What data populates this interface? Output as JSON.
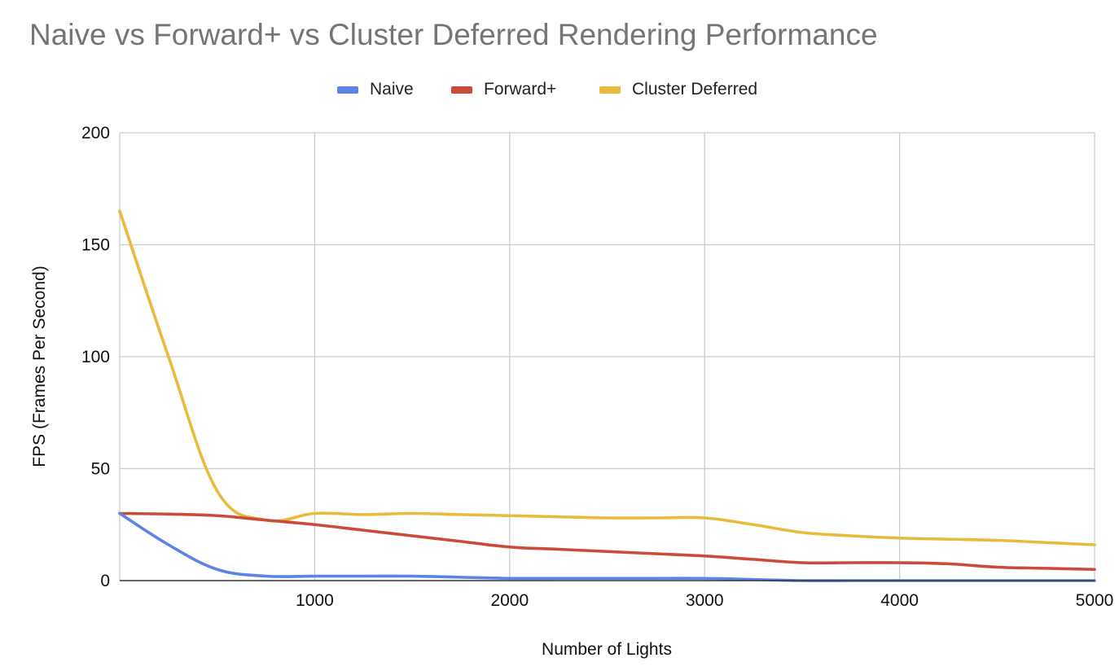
{
  "chart_data": {
    "type": "line",
    "title": "Naive vs Forward+ vs Cluster Deferred Rendering Performance",
    "xlabel": "Number of Lights",
    "ylabel": "FPS (Frames Per Second)",
    "xlim": [
      0,
      5000
    ],
    "ylim": [
      0,
      200
    ],
    "xticks": [
      1000,
      2000,
      3000,
      4000,
      5000
    ],
    "yticks": [
      0,
      50,
      100,
      150,
      200
    ],
    "grid": true,
    "legend_position": "top",
    "series": [
      {
        "name": "Naive",
        "color": "#5b84e6",
        "x": [
          0,
          250,
          500,
          750,
          1000,
          1250,
          1500,
          1750,
          2000,
          2250,
          2500,
          2750,
          3000,
          3250,
          3500,
          3750,
          4000,
          4250,
          4500,
          4750,
          5000
        ],
        "values": [
          30,
          16,
          5,
          2,
          2,
          2,
          2,
          1.5,
          1,
          1,
          1,
          1,
          1,
          0.5,
          0,
          0,
          0,
          0,
          0,
          0,
          0
        ]
      },
      {
        "name": "Forward+",
        "color": "#cc4a3a",
        "x": [
          0,
          250,
          500,
          750,
          1000,
          1250,
          1500,
          1750,
          2000,
          2250,
          2500,
          2750,
          3000,
          3250,
          3500,
          3750,
          4000,
          4250,
          4500,
          4750,
          5000
        ],
        "values": [
          30,
          29.7,
          29,
          27,
          25,
          22.5,
          20,
          17.5,
          15,
          14,
          13,
          12,
          11,
          9.5,
          8,
          8,
          8,
          7.5,
          6,
          5.5,
          5
        ]
      },
      {
        "name": "Cluster Deferred",
        "color": "#e8bb3c",
        "x": [
          0,
          250,
          500,
          750,
          1000,
          1250,
          1500,
          1750,
          2000,
          2250,
          2500,
          2750,
          3000,
          3250,
          3500,
          3750,
          4000,
          4250,
          4500,
          4750,
          5000
        ],
        "values": [
          165,
          100,
          40,
          27,
          30,
          29.5,
          30,
          29.5,
          29,
          28.5,
          28,
          28,
          28,
          25,
          21.5,
          20,
          19,
          18.5,
          18,
          17,
          16
        ]
      }
    ]
  }
}
